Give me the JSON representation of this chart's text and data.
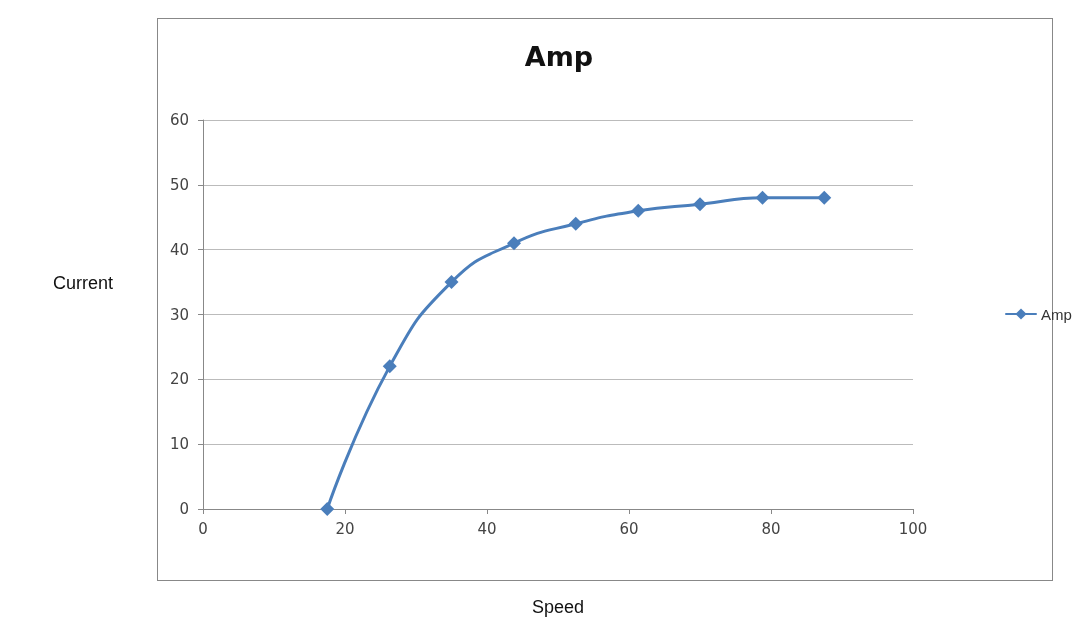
{
  "chart_data": {
    "type": "line",
    "title": "Amp",
    "xlabel": "Speed",
    "ylabel": "Current",
    "x": [
      17.5,
      26.3,
      35,
      43.8,
      52.5,
      61.3,
      70,
      78.8,
      87.5
    ],
    "series": [
      {
        "name": "Amp",
        "color": "#4a7ebb",
        "values": [
          0,
          22,
          35,
          41,
          44,
          46,
          47,
          48,
          48
        ]
      }
    ],
    "xlim": [
      0,
      100
    ],
    "xticks": [
      0,
      20,
      40,
      60,
      80,
      100
    ],
    "ylim": [
      0,
      60
    ],
    "yticks": [
      0,
      10,
      20,
      30,
      40,
      50,
      60
    ],
    "grid": "y",
    "legend": "right",
    "marker": "diamond",
    "line_style": "solid"
  }
}
